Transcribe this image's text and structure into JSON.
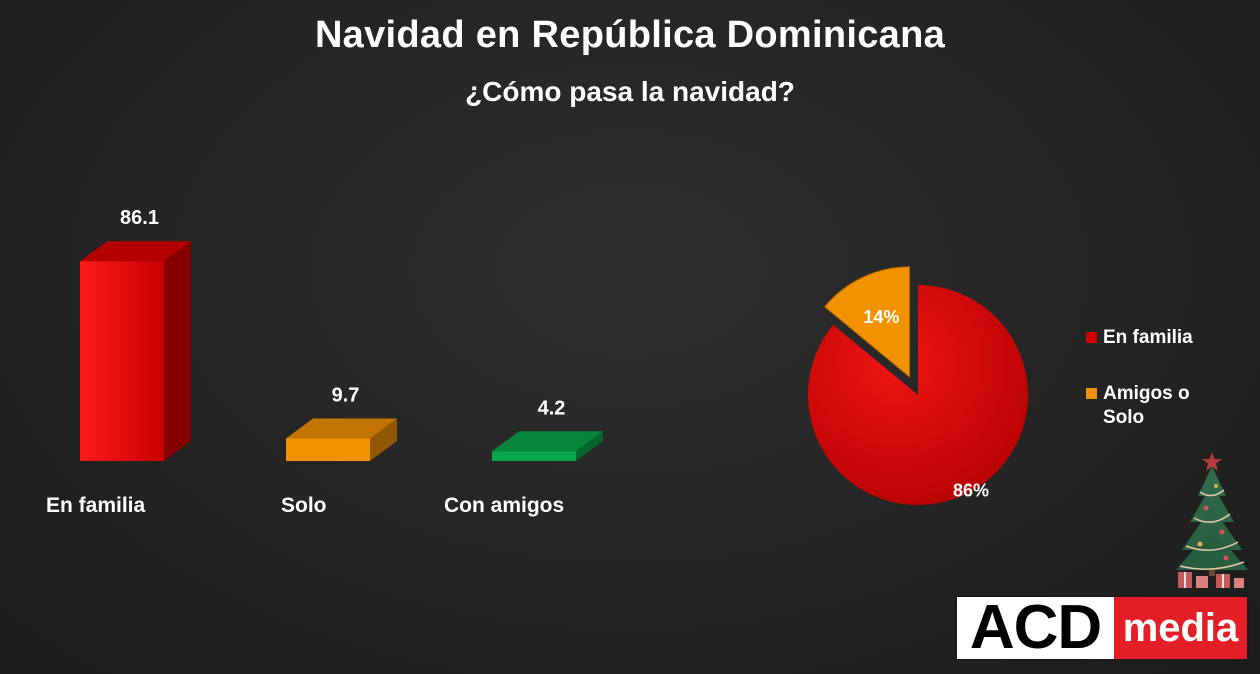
{
  "title": "Navidad en República Dominicana",
  "subtitle": "¿Cómo pasa la navidad?",
  "chart_data": [
    {
      "type": "bar",
      "categories": [
        "En familia",
        "Solo",
        "Con amigos"
      ],
      "values": [
        86.1,
        9.7,
        4.2
      ],
      "value_labels": [
        "86.1",
        "9.7",
        "4.2"
      ],
      "colors": [
        "#e00000",
        "#f39200",
        "#0aa64b"
      ],
      "xlabel": "",
      "ylabel": "",
      "ylim": [
        0,
        100
      ],
      "grid": false
    },
    {
      "type": "pie",
      "labels": [
        "En familia",
        "Amigos o Solo"
      ],
      "values": [
        86,
        14
      ],
      "value_labels": [
        "86%",
        "14%"
      ],
      "colors": [
        "#d40000",
        "#f39200"
      ],
      "legend_position": "right"
    }
  ],
  "legend": [
    {
      "label": "En familia",
      "color": "#d40000"
    },
    {
      "label": "Amigos o Solo",
      "color": "#f39200"
    }
  ],
  "logo": {
    "left": "ACD",
    "right": "media"
  }
}
